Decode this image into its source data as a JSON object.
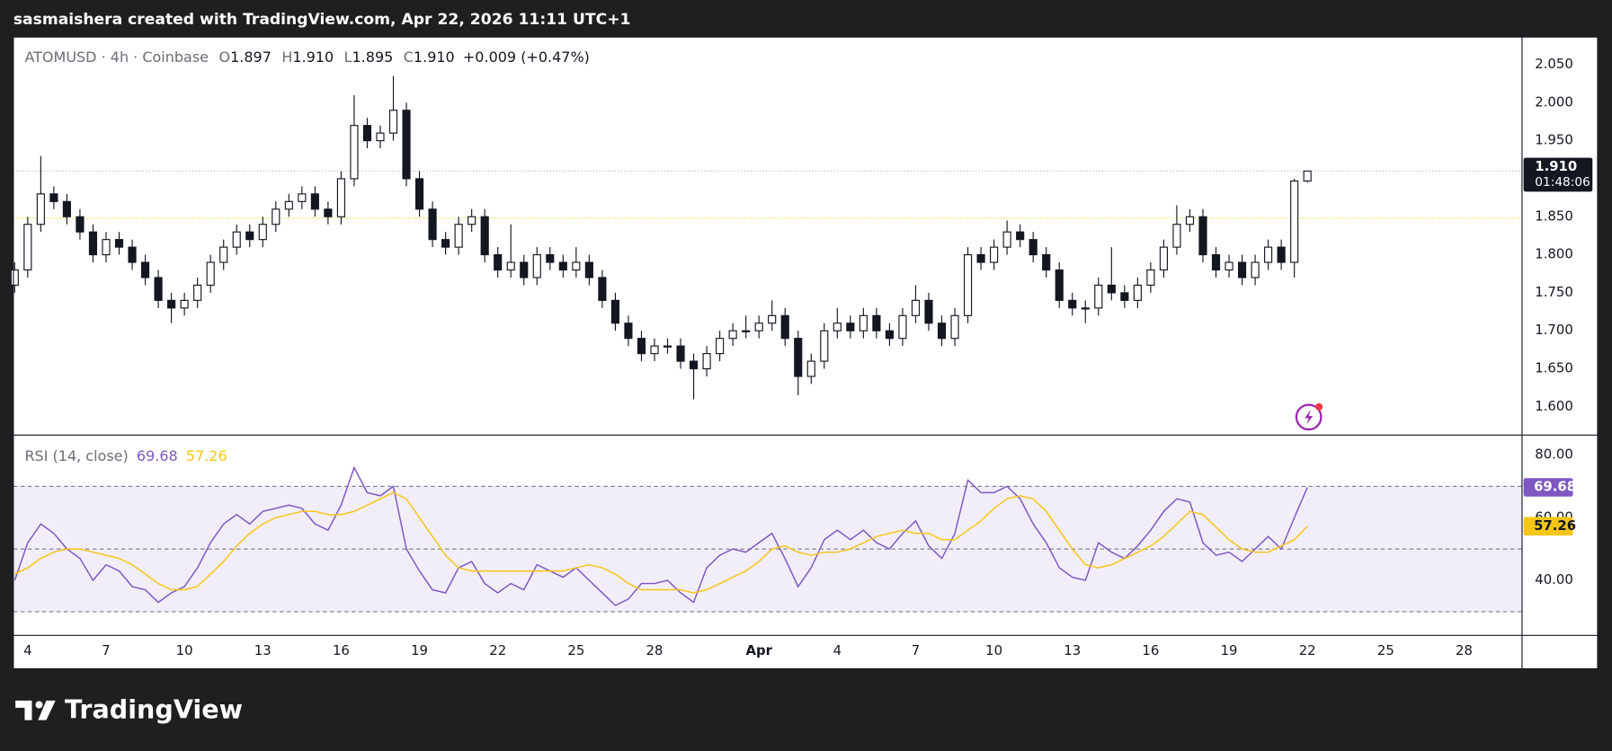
{
  "top_bar": "sasmaishera created with TradingView.com, Apr 22, 2026 11:11 UTC+1",
  "header": {
    "symbol_line": "ATOMUSD · 4h · Coinbase",
    "ohlc": [
      {
        "label": "O",
        "value": "1.897"
      },
      {
        "label": "H",
        "value": "1.910"
      },
      {
        "label": "L",
        "value": "1.895"
      },
      {
        "label": "C",
        "value": "1.910"
      }
    ],
    "change": "+0.009 (+0.47%)"
  },
  "last_price_label": "1.910",
  "countdown": "01:48:06",
  "brand": "TradingView",
  "chart_data": [
    {
      "type": "candlestick",
      "x": [
        3.5,
        4,
        4.5,
        5,
        5.5,
        6,
        6.5,
        7,
        7.5,
        8,
        8.5,
        9,
        9.5,
        10,
        10.5,
        11,
        11.5,
        12,
        12.5,
        13,
        13.5,
        14,
        14.5,
        15,
        15.5,
        16,
        16.5,
        17,
        17.5,
        18,
        18.5,
        19,
        19.5,
        20,
        20.5,
        21,
        21.5,
        22,
        22.5,
        23,
        23.5,
        24,
        24.5,
        25,
        25.5,
        26,
        26.5,
        27,
        27.5,
        28,
        28.5,
        29,
        29.5,
        30,
        30.5,
        31,
        31.5,
        32,
        32.5,
        33,
        33.5,
        34,
        34.5,
        35,
        35.5,
        36,
        36.5,
        37,
        37.5,
        38,
        38.5,
        39,
        39.5,
        40,
        40.5,
        41,
        41.5,
        42,
        42.5,
        43,
        43.5,
        44,
        44.5,
        45,
        45.5,
        46,
        46.5,
        47,
        47.5,
        48,
        48.5,
        49,
        49.5,
        50,
        50.5,
        51,
        51.5,
        52,
        52.5,
        53
      ],
      "ohlc": [
        [
          1.76,
          1.79,
          1.75,
          1.78
        ],
        [
          1.78,
          1.85,
          1.77,
          1.84
        ],
        [
          1.84,
          1.93,
          1.83,
          1.88
        ],
        [
          1.88,
          1.89,
          1.86,
          1.87
        ],
        [
          1.87,
          1.88,
          1.84,
          1.85
        ],
        [
          1.85,
          1.86,
          1.82,
          1.83
        ],
        [
          1.83,
          1.84,
          1.79,
          1.8
        ],
        [
          1.8,
          1.83,
          1.79,
          1.82
        ],
        [
          1.82,
          1.83,
          1.8,
          1.81
        ],
        [
          1.81,
          1.82,
          1.78,
          1.79
        ],
        [
          1.79,
          1.8,
          1.76,
          1.77
        ],
        [
          1.77,
          1.78,
          1.73,
          1.74
        ],
        [
          1.74,
          1.75,
          1.71,
          1.73
        ],
        [
          1.73,
          1.75,
          1.72,
          1.74
        ],
        [
          1.74,
          1.77,
          1.73,
          1.76
        ],
        [
          1.76,
          1.8,
          1.75,
          1.79
        ],
        [
          1.79,
          1.82,
          1.78,
          1.81
        ],
        [
          1.81,
          1.84,
          1.8,
          1.83
        ],
        [
          1.83,
          1.84,
          1.81,
          1.82
        ],
        [
          1.82,
          1.85,
          1.81,
          1.84
        ],
        [
          1.84,
          1.87,
          1.83,
          1.86
        ],
        [
          1.86,
          1.88,
          1.85,
          1.87
        ],
        [
          1.87,
          1.89,
          1.86,
          1.88
        ],
        [
          1.88,
          1.89,
          1.85,
          1.86
        ],
        [
          1.86,
          1.87,
          1.84,
          1.85
        ],
        [
          1.85,
          1.91,
          1.84,
          1.9
        ],
        [
          1.9,
          2.01,
          1.89,
          1.97
        ],
        [
          1.97,
          1.98,
          1.94,
          1.95
        ],
        [
          1.95,
          1.97,
          1.94,
          1.96
        ],
        [
          1.96,
          2.035,
          1.95,
          1.99
        ],
        [
          1.99,
          2.0,
          1.89,
          1.9
        ],
        [
          1.9,
          1.91,
          1.85,
          1.86
        ],
        [
          1.86,
          1.87,
          1.81,
          1.82
        ],
        [
          1.82,
          1.83,
          1.8,
          1.81
        ],
        [
          1.81,
          1.85,
          1.8,
          1.84
        ],
        [
          1.84,
          1.86,
          1.83,
          1.85
        ],
        [
          1.85,
          1.86,
          1.79,
          1.8
        ],
        [
          1.8,
          1.81,
          1.77,
          1.78
        ],
        [
          1.78,
          1.84,
          1.77,
          1.79
        ],
        [
          1.79,
          1.8,
          1.76,
          1.77
        ],
        [
          1.77,
          1.81,
          1.76,
          1.8
        ],
        [
          1.8,
          1.81,
          1.78,
          1.79
        ],
        [
          1.79,
          1.8,
          1.77,
          1.78
        ],
        [
          1.78,
          1.81,
          1.77,
          1.79
        ],
        [
          1.79,
          1.8,
          1.76,
          1.77
        ],
        [
          1.77,
          1.78,
          1.73,
          1.74
        ],
        [
          1.74,
          1.75,
          1.7,
          1.71
        ],
        [
          1.71,
          1.72,
          1.68,
          1.69
        ],
        [
          1.69,
          1.7,
          1.66,
          1.67
        ],
        [
          1.67,
          1.69,
          1.66,
          1.68
        ],
        [
          1.68,
          1.69,
          1.67,
          1.68
        ],
        [
          1.68,
          1.69,
          1.65,
          1.66
        ],
        [
          1.66,
          1.67,
          1.61,
          1.65
        ],
        [
          1.65,
          1.68,
          1.64,
          1.67
        ],
        [
          1.67,
          1.7,
          1.66,
          1.69
        ],
        [
          1.69,
          1.71,
          1.68,
          1.7
        ],
        [
          1.7,
          1.72,
          1.69,
          1.7
        ],
        [
          1.7,
          1.72,
          1.69,
          1.71
        ],
        [
          1.71,
          1.74,
          1.7,
          1.72
        ],
        [
          1.72,
          1.73,
          1.68,
          1.69
        ],
        [
          1.69,
          1.7,
          1.615,
          1.64
        ],
        [
          1.64,
          1.67,
          1.63,
          1.66
        ],
        [
          1.66,
          1.71,
          1.65,
          1.7
        ],
        [
          1.7,
          1.73,
          1.69,
          1.71
        ],
        [
          1.71,
          1.72,
          1.69,
          1.7
        ],
        [
          1.7,
          1.73,
          1.69,
          1.72
        ],
        [
          1.72,
          1.73,
          1.69,
          1.7
        ],
        [
          1.7,
          1.71,
          1.68,
          1.69
        ],
        [
          1.69,
          1.73,
          1.68,
          1.72
        ],
        [
          1.72,
          1.76,
          1.71,
          1.74
        ],
        [
          1.74,
          1.75,
          1.7,
          1.71
        ],
        [
          1.71,
          1.72,
          1.68,
          1.69
        ],
        [
          1.69,
          1.73,
          1.68,
          1.72
        ],
        [
          1.72,
          1.81,
          1.71,
          1.8
        ],
        [
          1.8,
          1.81,
          1.78,
          1.79
        ],
        [
          1.79,
          1.82,
          1.78,
          1.81
        ],
        [
          1.81,
          1.845,
          1.8,
          1.83
        ],
        [
          1.83,
          1.84,
          1.81,
          1.82
        ],
        [
          1.82,
          1.83,
          1.79,
          1.8
        ],
        [
          1.8,
          1.81,
          1.77,
          1.78
        ],
        [
          1.78,
          1.79,
          1.73,
          1.74
        ],
        [
          1.74,
          1.75,
          1.72,
          1.73
        ],
        [
          1.73,
          1.74,
          1.71,
          1.73
        ],
        [
          1.73,
          1.77,
          1.72,
          1.76
        ],
        [
          1.76,
          1.81,
          1.74,
          1.75
        ],
        [
          1.75,
          1.76,
          1.73,
          1.74
        ],
        [
          1.74,
          1.77,
          1.73,
          1.76
        ],
        [
          1.76,
          1.79,
          1.75,
          1.78
        ],
        [
          1.78,
          1.82,
          1.77,
          1.81
        ],
        [
          1.81,
          1.865,
          1.8,
          1.84
        ],
        [
          1.84,
          1.86,
          1.83,
          1.85
        ],
        [
          1.85,
          1.86,
          1.79,
          1.8
        ],
        [
          1.8,
          1.81,
          1.77,
          1.78
        ],
        [
          1.78,
          1.8,
          1.77,
          1.79
        ],
        [
          1.79,
          1.8,
          1.76,
          1.77
        ],
        [
          1.77,
          1.8,
          1.76,
          1.79
        ],
        [
          1.79,
          1.82,
          1.78,
          1.81
        ],
        [
          1.81,
          1.82,
          1.78,
          1.79
        ],
        [
          1.79,
          1.9,
          1.77,
          1.897
        ],
        [
          1.897,
          1.91,
          1.895,
          1.91
        ]
      ],
      "up_color": "#ffffff",
      "down_color": "#131722",
      "outline_color": "#131722",
      "hline": 1.848,
      "hline_color": "#f2d400",
      "xlim": [
        3.45,
        61.2
      ],
      "xticks": [
        4,
        7,
        10,
        13,
        16,
        19,
        22,
        25,
        28,
        {
          "value": 32,
          "label": "Apr"
        },
        {
          "value": 35,
          "label": "4"
        },
        {
          "value": 38,
          "label": "7"
        },
        {
          "value": 41,
          "label": "10"
        },
        {
          "value": 44,
          "label": "13"
        },
        {
          "value": 47,
          "label": "16"
        },
        {
          "value": 50,
          "label": "19"
        },
        {
          "value": 53,
          "label": "22"
        },
        {
          "value": 56,
          "label": "25"
        },
        {
          "value": 59,
          "label": "28"
        }
      ],
      "ylim": [
        1.5635,
        2.085
      ],
      "yticks": [
        {
          "value": 1.6,
          "label": "1.600"
        },
        {
          "value": 1.65,
          "label": "1.650"
        },
        {
          "value": 1.7,
          "label": "1.700"
        },
        {
          "value": 1.75,
          "label": "1.750"
        },
        {
          "value": 1.8,
          "label": "1.800"
        },
        {
          "value": 1.85,
          "label": "1.850"
        },
        {
          "value": 1.9,
          "label": "1.900"
        },
        {
          "value": 1.95,
          "label": "1.950"
        },
        {
          "value": 2.0,
          "label": "2.000"
        },
        {
          "value": 2.05,
          "label": "2.050"
        }
      ]
    },
    {
      "type": "line",
      "title": "RSI (14, close)",
      "series": [
        {
          "name": "RSI",
          "color": "#7e57c2",
          "values": [
            40,
            52,
            58,
            55,
            50,
            47,
            40,
            45,
            43,
            38,
            37,
            33,
            36,
            38,
            44,
            52,
            58,
            61,
            58,
            62,
            63,
            64,
            63,
            58,
            56,
            64,
            76,
            68,
            67,
            70,
            50,
            43,
            37,
            36,
            44,
            46,
            39,
            36,
            39,
            37,
            45,
            43,
            41,
            44,
            40,
            36,
            32,
            34,
            39,
            39,
            40,
            36,
            33,
            44,
            48,
            50,
            49,
            52,
            55,
            47,
            38,
            44,
            53,
            56,
            53,
            56,
            52,
            50,
            55,
            59,
            51,
            47,
            55,
            72,
            68,
            68,
            70,
            66,
            58,
            52,
            44,
            41,
            40,
            52,
            49,
            47,
            51,
            56,
            62,
            66,
            65,
            52,
            48,
            49,
            46,
            50,
            54,
            50,
            60,
            69.68
          ]
        },
        {
          "name": "RSI-based MA",
          "color": "#f5c518",
          "values": [
            42,
            44,
            47,
            49,
            50,
            50,
            49,
            48,
            47,
            45,
            42,
            39,
            37,
            37,
            38,
            42,
            46,
            51,
            55,
            58,
            60,
            61,
            62,
            62,
            61,
            61,
            62,
            64,
            66,
            68,
            66,
            60,
            54,
            48,
            44,
            43,
            43,
            43,
            43,
            43,
            43,
            43,
            43,
            44,
            45,
            44,
            42,
            39,
            37,
            37,
            37,
            37,
            36,
            37,
            39,
            41,
            43,
            46,
            50,
            51,
            49,
            48,
            49,
            49,
            50,
            52,
            54,
            55,
            56,
            55,
            55,
            53,
            53,
            56,
            59,
            63,
            66,
            67,
            66,
            62,
            56,
            50,
            45,
            44,
            45,
            47,
            49,
            51,
            54,
            58,
            62,
            61,
            57,
            53,
            50,
            49,
            49,
            51,
            53,
            57.26
          ]
        }
      ],
      "levels": [
        70,
        50,
        30
      ],
      "band_color": "#7e57c2",
      "ylim": [
        22.6,
        86.2
      ],
      "yticks": [
        {
          "value": 40,
          "label": "40.00"
        },
        {
          "value": 60,
          "label": "60.00"
        },
        {
          "value": 80,
          "label": "80.00"
        }
      ]
    }
  ]
}
